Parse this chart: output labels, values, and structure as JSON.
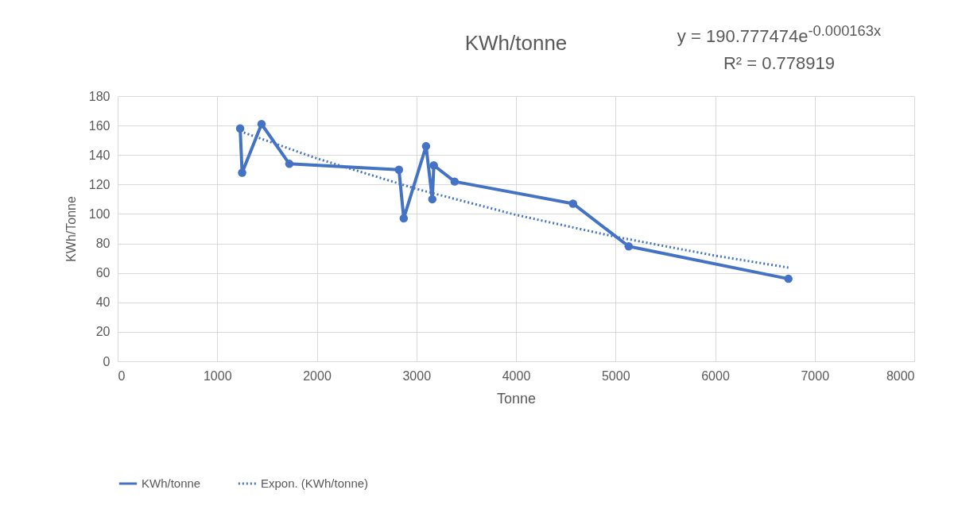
{
  "chart_data": {
    "type": "line",
    "title": "KWh/tonne",
    "xlabel": "Tonne",
    "ylabel": "KWh/Tonne",
    "annotations": [
      "y = 190.777474e$^{-0.000163x}$",
      "R² = 0.778919"
    ],
    "series": [
      {
        "name": "KWh/tonne",
        "color": "#4472c4",
        "marker": "circle",
        "line_style": "solid",
        "x": [
          1230,
          1250,
          1445,
          1724,
          2825,
          2873,
          3097,
          3160,
          3175,
          3384,
          4573,
          5132,
          6736
        ],
        "values": [
          158,
          128,
          161,
          134,
          130,
          97,
          146,
          110,
          133,
          122,
          107,
          78,
          56
        ]
      },
      {
        "name": "Expon. (KWh/tonne)",
        "color": "#4472c4",
        "marker": "none",
        "line_style": "dotted",
        "x": [
          1230,
          2000,
          3000,
          4000,
          5000,
          6000,
          6736
        ],
        "values": [
          156.1,
          137.7,
          117.0,
          99.4,
          84.5,
          71.7,
          63.6
        ]
      }
    ],
    "xlim": [
      0,
      8000
    ],
    "xticks": [
      0,
      1000,
      2000,
      3000,
      4000,
      5000,
      6000,
      7000,
      8000
    ],
    "ylim": [
      0,
      180
    ],
    "yticks": [
      0,
      20,
      40,
      60,
      80,
      100,
      120,
      140,
      160,
      180
    ],
    "grid": true,
    "legend": "bottom"
  }
}
